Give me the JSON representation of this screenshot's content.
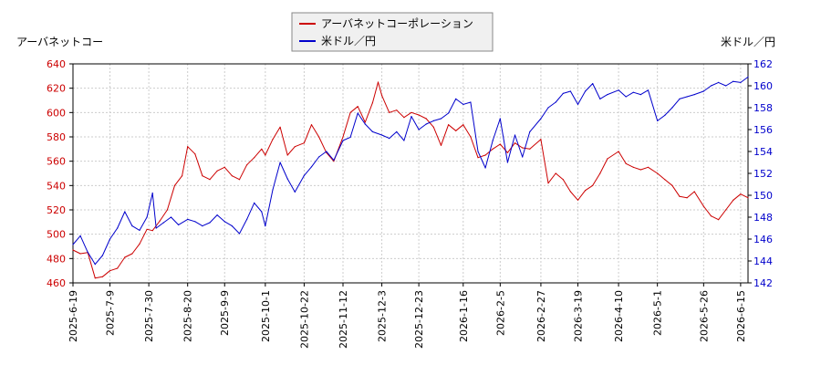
{
  "chart_data": {
    "type": "line",
    "legend": {
      "placement": "top-center",
      "entries": [
        {
          "label": "アーバネットコーポレーション",
          "color": "#cc0000"
        },
        {
          "label": "米ドル／円",
          "color": "#0000cc"
        }
      ]
    },
    "left_axis": {
      "label": "アーバネットコー",
      "range": [
        460,
        640
      ],
      "ticks": [
        460,
        480,
        500,
        520,
        540,
        560,
        580,
        600,
        620,
        640
      ],
      "color": "#cc0000"
    },
    "right_axis": {
      "label": "米ドル／円",
      "range": [
        142,
        162
      ],
      "ticks": [
        142,
        144,
        146,
        148,
        150,
        152,
        154,
        156,
        158,
        160,
        162
      ],
      "color": "#0000cc"
    },
    "x_axis": {
      "start": "2025-06-19",
      "end": "2026-06-19",
      "tick_labels": [
        "2025-6-19",
        "2025-7-9",
        "2025-7-30",
        "2025-8-20",
        "2025-9-9",
        "2025-10-1",
        "2025-10-22",
        "2025-11-12",
        "2025-12-3",
        "2025-12-23",
        "2026-1-16",
        "2026-2-5",
        "2026-2-27",
        "2026-3-19",
        "2026-4-10",
        "2026-5-1",
        "2026-5-26",
        "2026-6-15"
      ]
    },
    "grid": true,
    "series": [
      {
        "name": "アーバネットコーポレーション",
        "axis": "left",
        "color": "#cc0000",
        "points": [
          [
            "2025-06-19",
            487
          ],
          [
            "2025-06-23",
            484
          ],
          [
            "2025-06-27",
            485
          ],
          [
            "2025-07-01",
            464
          ],
          [
            "2025-07-05",
            465
          ],
          [
            "2025-07-09",
            470
          ],
          [
            "2025-07-13",
            472
          ],
          [
            "2025-07-17",
            481
          ],
          [
            "2025-07-21",
            484
          ],
          [
            "2025-07-25",
            492
          ],
          [
            "2025-07-29",
            504
          ],
          [
            "2025-08-01",
            503
          ],
          [
            "2025-08-05",
            511
          ],
          [
            "2025-08-09",
            520
          ],
          [
            "2025-08-13",
            540
          ],
          [
            "2025-08-17",
            548
          ],
          [
            "2025-08-20",
            572
          ],
          [
            "2025-08-24",
            566
          ],
          [
            "2025-08-28",
            548
          ],
          [
            "2025-09-01",
            545
          ],
          [
            "2025-09-05",
            552
          ],
          [
            "2025-09-09",
            555
          ],
          [
            "2025-09-13",
            548
          ],
          [
            "2025-09-17",
            545
          ],
          [
            "2025-09-21",
            557
          ],
          [
            "2025-09-25",
            563
          ],
          [
            "2025-09-29",
            570
          ],
          [
            "2025-10-01",
            565
          ],
          [
            "2025-10-05",
            578
          ],
          [
            "2025-10-09",
            588
          ],
          [
            "2025-10-13",
            565
          ],
          [
            "2025-10-17",
            572
          ],
          [
            "2025-10-22",
            575
          ],
          [
            "2025-10-26",
            590
          ],
          [
            "2025-10-30",
            580
          ],
          [
            "2025-11-03",
            567
          ],
          [
            "2025-11-07",
            560
          ],
          [
            "2025-11-12",
            580
          ],
          [
            "2025-11-16",
            600
          ],
          [
            "2025-11-20",
            605
          ],
          [
            "2025-11-24",
            592
          ],
          [
            "2025-11-28",
            608
          ],
          [
            "2025-12-01",
            625
          ],
          [
            "2025-12-03",
            614
          ],
          [
            "2025-12-07",
            600
          ],
          [
            "2025-12-11",
            602
          ],
          [
            "2025-12-15",
            596
          ],
          [
            "2025-12-19",
            600
          ],
          [
            "2025-12-23",
            598
          ],
          [
            "2025-12-27",
            595
          ],
          [
            "2025-12-31",
            588
          ],
          [
            "2026-01-04",
            573
          ],
          [
            "2026-01-08",
            590
          ],
          [
            "2026-01-12",
            585
          ],
          [
            "2026-01-16",
            590
          ],
          [
            "2026-01-20",
            580
          ],
          [
            "2026-01-24",
            563
          ],
          [
            "2026-01-28",
            565
          ],
          [
            "2026-02-01",
            570
          ],
          [
            "2026-02-05",
            574
          ],
          [
            "2026-02-09",
            567
          ],
          [
            "2026-02-13",
            575
          ],
          [
            "2026-02-17",
            571
          ],
          [
            "2026-02-21",
            570
          ],
          [
            "2026-02-27",
            578
          ],
          [
            "2026-03-03",
            542
          ],
          [
            "2026-03-07",
            550
          ],
          [
            "2026-03-11",
            545
          ],
          [
            "2026-03-15",
            535
          ],
          [
            "2026-03-19",
            528
          ],
          [
            "2026-03-23",
            536
          ],
          [
            "2026-03-27",
            540
          ],
          [
            "2026-03-31",
            550
          ],
          [
            "2026-04-04",
            562
          ],
          [
            "2026-04-10",
            568
          ],
          [
            "2026-04-14",
            558
          ],
          [
            "2026-04-18",
            555
          ],
          [
            "2026-04-22",
            553
          ],
          [
            "2026-04-26",
            555
          ],
          [
            "2026-05-01",
            550
          ],
          [
            "2026-05-05",
            545
          ],
          [
            "2026-05-09",
            540
          ],
          [
            "2026-05-13",
            531
          ],
          [
            "2026-05-17",
            530
          ],
          [
            "2026-05-21",
            535
          ],
          [
            "2026-05-26",
            523
          ],
          [
            "2026-05-30",
            515
          ],
          [
            "2026-06-03",
            512
          ],
          [
            "2026-06-07",
            520
          ],
          [
            "2026-06-11",
            528
          ],
          [
            "2026-06-15",
            533
          ],
          [
            "2026-06-19",
            530
          ]
        ]
      },
      {
        "name": "米ドル／円",
        "axis": "right",
        "color": "#0000cc",
        "points": [
          [
            "2025-06-19",
            145.5
          ],
          [
            "2025-06-23",
            146.3
          ],
          [
            "2025-06-27",
            144.8
          ],
          [
            "2025-07-01",
            143.7
          ],
          [
            "2025-07-05",
            144.5
          ],
          [
            "2025-07-09",
            146.0
          ],
          [
            "2025-07-13",
            147.0
          ],
          [
            "2025-07-17",
            148.5
          ],
          [
            "2025-07-21",
            147.2
          ],
          [
            "2025-07-25",
            146.8
          ],
          [
            "2025-07-29",
            148.0
          ],
          [
            "2025-08-01",
            150.2
          ],
          [
            "2025-08-03",
            147.0
          ],
          [
            "2025-08-07",
            147.5
          ],
          [
            "2025-08-11",
            148.0
          ],
          [
            "2025-08-15",
            147.3
          ],
          [
            "2025-08-20",
            147.8
          ],
          [
            "2025-08-24",
            147.6
          ],
          [
            "2025-08-28",
            147.2
          ],
          [
            "2025-09-01",
            147.5
          ],
          [
            "2025-09-05",
            148.2
          ],
          [
            "2025-09-09",
            147.6
          ],
          [
            "2025-09-13",
            147.2
          ],
          [
            "2025-09-17",
            146.5
          ],
          [
            "2025-09-21",
            147.8
          ],
          [
            "2025-09-25",
            149.3
          ],
          [
            "2025-09-29",
            148.5
          ],
          [
            "2025-10-01",
            147.2
          ],
          [
            "2025-10-05",
            150.5
          ],
          [
            "2025-10-09",
            153.0
          ],
          [
            "2025-10-13",
            151.5
          ],
          [
            "2025-10-17",
            150.3
          ],
          [
            "2025-10-22",
            151.8
          ],
          [
            "2025-10-26",
            152.6
          ],
          [
            "2025-10-30",
            153.5
          ],
          [
            "2025-11-03",
            154.0
          ],
          [
            "2025-11-07",
            153.2
          ],
          [
            "2025-11-12",
            155.0
          ],
          [
            "2025-11-16",
            155.3
          ],
          [
            "2025-11-20",
            157.5
          ],
          [
            "2025-11-24",
            156.5
          ],
          [
            "2025-11-28",
            155.8
          ],
          [
            "2025-12-03",
            155.5
          ],
          [
            "2025-12-07",
            155.2
          ],
          [
            "2025-12-11",
            155.8
          ],
          [
            "2025-12-15",
            155.0
          ],
          [
            "2025-12-19",
            157.2
          ],
          [
            "2025-12-23",
            156.0
          ],
          [
            "2025-12-27",
            156.5
          ],
          [
            "2025-12-31",
            156.8
          ],
          [
            "2026-01-04",
            157.0
          ],
          [
            "2026-01-08",
            157.5
          ],
          [
            "2026-01-12",
            158.8
          ],
          [
            "2026-01-16",
            158.3
          ],
          [
            "2026-01-20",
            158.5
          ],
          [
            "2026-01-24",
            154.0
          ],
          [
            "2026-01-28",
            152.5
          ],
          [
            "2026-02-01",
            155.0
          ],
          [
            "2026-02-05",
            157.0
          ],
          [
            "2026-02-09",
            153.0
          ],
          [
            "2026-02-13",
            155.5
          ],
          [
            "2026-02-17",
            153.5
          ],
          [
            "2026-02-21",
            155.8
          ],
          [
            "2026-02-27",
            157.0
          ],
          [
            "2026-03-03",
            158.0
          ],
          [
            "2026-03-07",
            158.5
          ],
          [
            "2026-03-11",
            159.3
          ],
          [
            "2026-03-15",
            159.5
          ],
          [
            "2026-03-19",
            158.3
          ],
          [
            "2026-03-23",
            159.5
          ],
          [
            "2026-03-27",
            160.2
          ],
          [
            "2026-03-31",
            158.8
          ],
          [
            "2026-04-04",
            159.2
          ],
          [
            "2026-04-10",
            159.6
          ],
          [
            "2026-04-14",
            159.0
          ],
          [
            "2026-04-18",
            159.4
          ],
          [
            "2026-04-22",
            159.2
          ],
          [
            "2026-04-26",
            159.6
          ],
          [
            "2026-05-01",
            156.8
          ],
          [
            "2026-05-05",
            157.3
          ],
          [
            "2026-05-09",
            158.0
          ],
          [
            "2026-05-13",
            158.8
          ],
          [
            "2026-05-17",
            159.0
          ],
          [
            "2026-05-21",
            159.2
          ],
          [
            "2026-05-26",
            159.5
          ],
          [
            "2026-05-30",
            160.0
          ],
          [
            "2026-06-03",
            160.3
          ],
          [
            "2026-06-07",
            160.0
          ],
          [
            "2026-06-11",
            160.4
          ],
          [
            "2026-06-15",
            160.3
          ],
          [
            "2026-06-19",
            160.8
          ]
        ]
      }
    ]
  }
}
